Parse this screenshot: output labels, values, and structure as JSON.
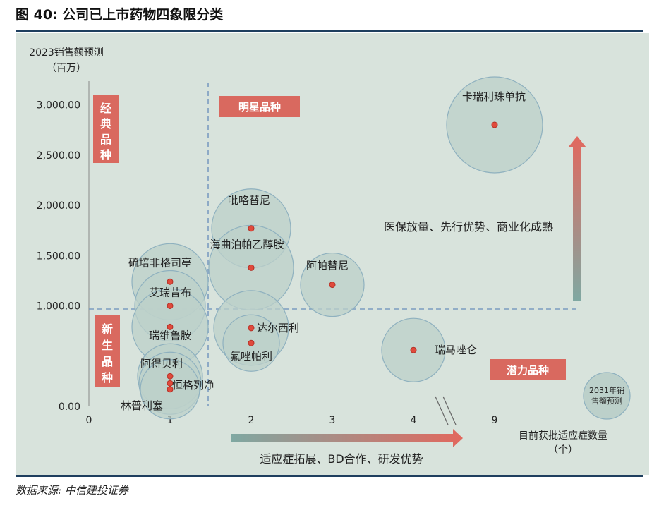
{
  "title": "图 40:  公司已上市药物四象限分类",
  "source": "数据来源:  中信建投证券",
  "chart_data": {
    "type": "scatter",
    "title": "图 40:  公司已上市药物四象限分类",
    "ylabel": "2023销售额预测",
    "ylabel_unit": "（百万）",
    "xlabel": "目前获批适应症数量",
    "xlabel_unit": "（个）",
    "x_ticks": [
      "0",
      "1",
      "2",
      "3",
      "4",
      "9"
    ],
    "y_ticks": [
      "0.00",
      "1,000.00",
      "1,500.00",
      "2,000.00",
      "2,500.00",
      "3,000.00"
    ],
    "ylim": [
      0,
      3000
    ],
    "axis_break": "between 4 and 9",
    "size_legend": "2031年销售额预测",
    "points": [
      {
        "name": "卡瑞利珠单抗",
        "x": 9,
        "y": 2800
      },
      {
        "name": "吡咯替尼",
        "x": 2,
        "y": 1770
      },
      {
        "name": "海曲泊帕乙醇胺",
        "x": 2,
        "y": 1380
      },
      {
        "name": "阿帕替尼",
        "x": 3,
        "y": 1210
      },
      {
        "name": "硫培非格司亭",
        "x": 1,
        "y": 1240
      },
      {
        "name": "艾瑞昔布",
        "x": 1,
        "y": 1000
      },
      {
        "name": "瑞维鲁胺",
        "x": 1,
        "y": 790
      },
      {
        "name": "达尔西利",
        "x": 2,
        "y": 780
      },
      {
        "name": "氟唑帕利",
        "x": 2,
        "y": 630
      },
      {
        "name": "瑞马唑仑",
        "x": 4,
        "y": 560
      },
      {
        "name": "阿得贝利",
        "x": 1,
        "y": 300
      },
      {
        "name": "恒格列净",
        "x": 1,
        "y": 230
      },
      {
        "name": "林普利塞",
        "x": 1,
        "y": 170
      }
    ],
    "quadrants": [
      "经典品种",
      "明星品种",
      "新生品种",
      "潜力品种"
    ],
    "annotations": [
      "医保放量、先行优势、商业化成熟",
      "适应症拓展、BD合作、研发优势"
    ],
    "colors": {
      "background": "#d8e3dc",
      "quadrant_box": "#d9695f",
      "bubble": "#bcd0ca",
      "point": "#e04a3c",
      "divider": "#7b9cc0",
      "rule": "#1f3f5f"
    }
  }
}
